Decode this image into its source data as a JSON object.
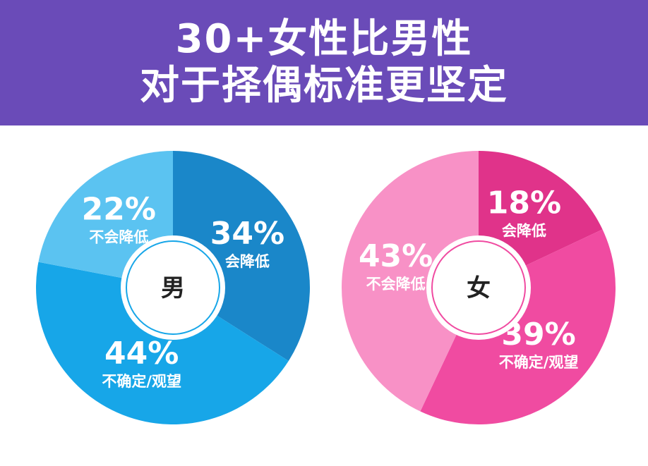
{
  "header": {
    "title_line1": "30+女性比男性",
    "title_line2": "对于择偶标准更坚定"
  },
  "colors": {
    "banner": "#6a4bb8"
  },
  "chart_data": [
    {
      "type": "pie",
      "center_label": "男",
      "slices": [
        {
          "label": "会降低",
          "value": 34,
          "text": "34%",
          "color": "#1a87c9"
        },
        {
          "label": "不确定/观望",
          "value": 44,
          "text": "44%",
          "color": "#17a6e8"
        },
        {
          "label": "不会降低",
          "value": 22,
          "text": "22%",
          "color": "#5bc3f1"
        }
      ]
    },
    {
      "type": "pie",
      "center_label": "女",
      "slices": [
        {
          "label": "会降低",
          "value": 18,
          "text": "18%",
          "color": "#e0338a"
        },
        {
          "label": "不确定/观望",
          "value": 39,
          "text": "39%",
          "color": "#f04ba1"
        },
        {
          "label": "不会降低",
          "value": 43,
          "text": "43%",
          "color": "#f891c6"
        }
      ]
    }
  ]
}
